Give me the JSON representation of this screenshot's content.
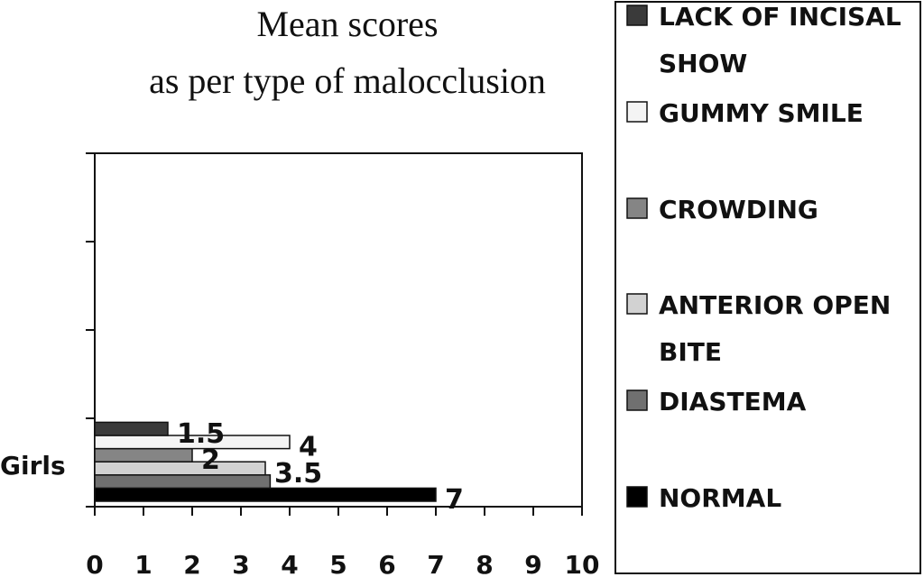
{
  "chart_data": {
    "type": "bar",
    "orientation": "horizontal",
    "title": "Mean scores as per type of malocclusion",
    "title_lines": [
      "Mean scores",
      "as per type of malocclusion"
    ],
    "categories": [
      "Girls"
    ],
    "xlim": [
      0,
      10
    ],
    "x_ticks": [
      "0",
      "1",
      "2",
      "3",
      "4",
      "5",
      "6",
      "7",
      "8",
      "9",
      "10"
    ],
    "grid": false,
    "legend_position": "right",
    "series": [
      {
        "name": "NORMAL",
        "legend_lines": [
          "NORMAL"
        ],
        "values": [
          7
        ],
        "label": "7",
        "color": "#000000"
      },
      {
        "name": "DIASTEMA",
        "legend_lines": [
          "DIASTEMA"
        ],
        "values": [
          3.6
        ],
        "label": "",
        "color": "#707070"
      },
      {
        "name": "ANTERIOR OPEN BITE",
        "legend_lines": [
          "ANTERIOR OPEN",
          "BITE"
        ],
        "values": [
          3.5
        ],
        "label": "3.5",
        "color": "#d2d2d2"
      },
      {
        "name": "CROWDING",
        "legend_lines": [
          "CROWDING"
        ],
        "values": [
          2
        ],
        "label": "2",
        "color": "#858585"
      },
      {
        "name": "GUMMY SMILE",
        "legend_lines": [
          "GUMMY SMILE"
        ],
        "values": [
          4
        ],
        "label": "4",
        "color": "#f4f4f4"
      },
      {
        "name": "LACK OF INCISAL SHOW",
        "legend_lines": [
          "LACK OF INCISAL",
          "SHOW"
        ],
        "values": [
          1.5
        ],
        "label": "1.5",
        "color": "#3a3a3a"
      }
    ]
  }
}
